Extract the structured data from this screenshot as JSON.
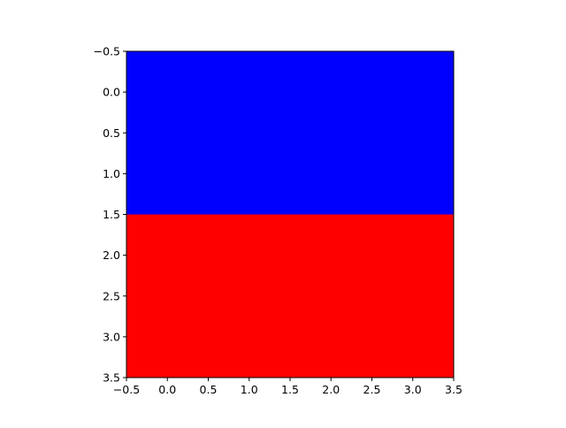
{
  "chart_data": {
    "type": "heatmap",
    "title": "",
    "xlabel": "",
    "ylabel": "",
    "xlim": [
      -0.5,
      3.5
    ],
    "ylim": [
      3.5,
      -0.5
    ],
    "y_inverted": true,
    "grid": false,
    "x_ticks": [
      "−0.5",
      "0.0",
      "0.5",
      "1.0",
      "1.5",
      "2.0",
      "2.5",
      "3.0",
      "3.5"
    ],
    "y_ticks": [
      "−0.5",
      "0.0",
      "0.5",
      "1.0",
      "1.5",
      "2.0",
      "2.5",
      "3.0",
      "3.5"
    ],
    "x_tick_values": [
      -0.5,
      0.0,
      0.5,
      1.0,
      1.5,
      2.0,
      2.5,
      3.0,
      3.5
    ],
    "y_tick_values": [
      -0.5,
      0.0,
      0.5,
      1.0,
      1.5,
      2.0,
      2.5,
      3.0,
      3.5
    ],
    "rows": [
      [
        "#0000ff",
        "#0000ff",
        "#0000ff",
        "#0000ff"
      ],
      [
        "#0000ff",
        "#0000ff",
        "#0000ff",
        "#0000ff"
      ],
      [
        "#ff0000",
        "#ff0000",
        "#ff0000",
        "#ff0000"
      ],
      [
        "#ff0000",
        "#ff0000",
        "#ff0000",
        "#ff0000"
      ]
    ],
    "colors": {
      "blue": "#0000ff",
      "red": "#ff0000",
      "axis": "#000000"
    }
  }
}
